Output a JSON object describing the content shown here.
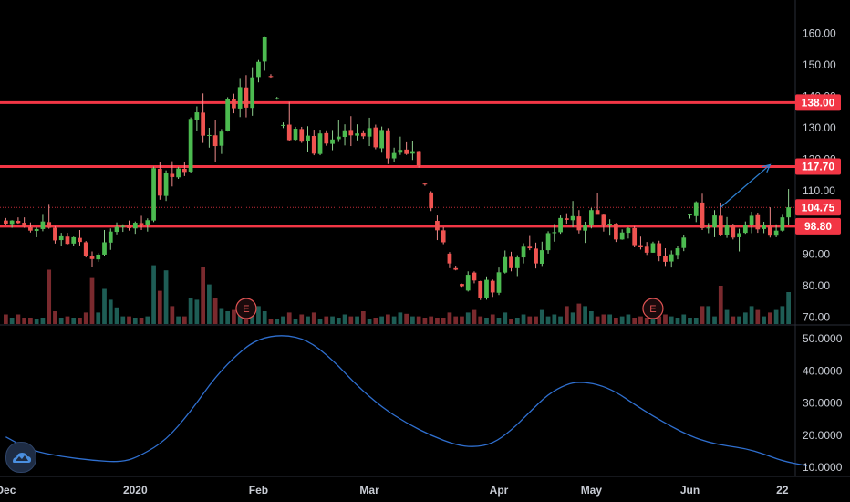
{
  "chart_data": {
    "type": "candlestick",
    "price_axis": {
      "ylim": [
        67.8,
        170.5
      ],
      "ticks": [
        {
          "v": 160,
          "label": "160.00"
        },
        {
          "v": 150,
          "label": "150.00"
        },
        {
          "v": 140,
          "label": "140.00"
        },
        {
          "v": 130,
          "label": "130.00"
        },
        {
          "v": 120,
          "label": "120.00"
        },
        {
          "v": 110,
          "label": "110.00"
        },
        {
          "v": 90,
          "label": "90.00"
        },
        {
          "v": 80,
          "label": "80.00"
        },
        {
          "v": 70,
          "label": "70.00"
        }
      ]
    },
    "indicator_axis": {
      "ylim": [
        7.5,
        54
      ],
      "ticks": [
        {
          "v": 50,
          "label": "50.0000"
        },
        {
          "v": 40,
          "label": "40.0000"
        },
        {
          "v": 30,
          "label": "30.0000"
        },
        {
          "v": 20,
          "label": "20.0000"
        },
        {
          "v": 10,
          "label": "10.0000"
        }
      ]
    },
    "x_ticks": [
      {
        "i": 0,
        "label": "Dec"
      },
      {
        "i": 21,
        "label": "2020"
      },
      {
        "i": 41,
        "label": "Feb"
      },
      {
        "i": 59,
        "label": "Mar"
      },
      {
        "i": 80,
        "label": "Apr"
      },
      {
        "i": 95,
        "label": "May"
      },
      {
        "i": 111,
        "label": "Jun"
      },
      {
        "i": 126,
        "label": "22"
      }
    ],
    "n_slots": 128,
    "horizontal_levels": [
      {
        "value": 138.0,
        "label": "138.00",
        "color": "#f23645"
      },
      {
        "value": 117.7,
        "label": "117.70",
        "color": "#f23645"
      },
      {
        "value": 98.8,
        "label": "98.80",
        "color": "#f23645"
      }
    ],
    "last_price": {
      "value": 104.75,
      "label": "104.75",
      "color": "#f23645"
    },
    "projection_arrow": {
      "from": {
        "i": 116,
        "v": 104.8
      },
      "to": {
        "i": 124,
        "v": 118.3
      },
      "color": "#2d7fd0"
    },
    "earnings_markers": [
      {
        "i": 39,
        "label": "E"
      },
      {
        "i": 105,
        "label": "E"
      }
    ],
    "up_color": "#26a69a",
    "up_body_color": "#4cbb50",
    "down_color": "#ef5350",
    "indicator_color": "#2f6fcf",
    "candles": [
      [
        100.6,
        101.4,
        99.3,
        99.6
      ],
      [
        99.5,
        100.7,
        98.3,
        100.6
      ],
      [
        100.5,
        101.6,
        99.6,
        99.8
      ],
      [
        99.9,
        101.6,
        98.3,
        98.6
      ],
      [
        98.5,
        100.0,
        96.8,
        97.4
      ],
      [
        97.3,
        98.4,
        95.3,
        97.9
      ],
      [
        97.9,
        102.4,
        97.2,
        100.3
      ],
      [
        100.1,
        105.6,
        98.0,
        98.3
      ],
      [
        98.3,
        98.8,
        93.3,
        94.3
      ],
      [
        94.4,
        96.7,
        92.6,
        95.6
      ],
      [
        95.5,
        96.7,
        93.0,
        93.2
      ],
      [
        93.3,
        95.5,
        92.6,
        95.3
      ],
      [
        95.1,
        97.6,
        92.7,
        93.8
      ],
      [
        93.7,
        94.1,
        88.9,
        89.3
      ],
      [
        89.2,
        90.8,
        86.0,
        88.4
      ],
      [
        88.3,
        90.3,
        87.5,
        89.8
      ],
      [
        89.8,
        97.6,
        89.5,
        93.7
      ],
      [
        93.6,
        98.1,
        91.3,
        97.1
      ],
      [
        97.0,
        100.0,
        96.2,
        98.6
      ],
      [
        98.5,
        99.4,
        97.0,
        98.9
      ],
      [
        99.0,
        100.6,
        97.4,
        98.2
      ],
      [
        98.1,
        100.3,
        96.4,
        99.9
      ],
      [
        99.8,
        102.1,
        97.6,
        99.3
      ],
      [
        99.2,
        101.3,
        97.1,
        100.7
      ],
      [
        100.6,
        117.7,
        100.1,
        117.2
      ],
      [
        117.0,
        119.2,
        107.2,
        108.5
      ],
      [
        108.4,
        116.5,
        106.8,
        115.6
      ],
      [
        115.4,
        119.4,
        111.4,
        114.4
      ],
      [
        114.3,
        117.6,
        113.8,
        117.1
      ],
      [
        117.0,
        119.3,
        114.7,
        116.0
      ],
      [
        116.1,
        133.3,
        115.6,
        132.8
      ],
      [
        132.6,
        136.8,
        129.0,
        134.9
      ],
      [
        134.8,
        140.9,
        125.2,
        127.5
      ],
      [
        127.6,
        130.0,
        123.7,
        127.7
      ],
      [
        127.6,
        132.5,
        119.2,
        124.2
      ],
      [
        124.3,
        129.6,
        121.7,
        128.8
      ],
      [
        128.9,
        139.7,
        128.8,
        139.0
      ],
      [
        139.0,
        140.8,
        134.6,
        136.2
      ],
      [
        136.1,
        145.5,
        133.4,
        142.9
      ],
      [
        142.8,
        146.7,
        133.3,
        136.4
      ],
      [
        136.3,
        149.2,
        133.8,
        146.0
      ],
      [
        146.1,
        151.5,
        144.4,
        150.9
      ],
      [
        151.0,
        159.0,
        148.1,
        158.8
      ],
      [
        146.4,
        147.0,
        145.6,
        146.1
      ],
      [
        139.3,
        139.8,
        138.9,
        139.4
      ],
      [
        130.6,
        131.7,
        129.9,
        130.9
      ],
      [
        131.0,
        138.2,
        125.8,
        126.1
      ],
      [
        126.2,
        130.3,
        125.7,
        129.7
      ],
      [
        129.6,
        130.3,
        125.2,
        125.6
      ],
      [
        125.7,
        130.5,
        122.2,
        127.5
      ],
      [
        127.4,
        129.4,
        121.3,
        121.8
      ],
      [
        121.7,
        129.4,
        121.3,
        128.2
      ],
      [
        128.3,
        129.2,
        124.3,
        125.0
      ],
      [
        124.9,
        129.3,
        122.9,
        126.3
      ],
      [
        126.4,
        132.4,
        125.5,
        127.2
      ],
      [
        127.1,
        131.1,
        124.4,
        129.2
      ],
      [
        129.3,
        133.7,
        124.2,
        127.6
      ],
      [
        127.5,
        131.1,
        126.0,
        128.2
      ],
      [
        128.3,
        129.2,
        126.5,
        127.3
      ],
      [
        127.2,
        133.2,
        124.2,
        129.9
      ],
      [
        130.1,
        131.0,
        123.2,
        123.8
      ],
      [
        123.5,
        130.4,
        122.1,
        129.3
      ],
      [
        129.2,
        129.9,
        118.5,
        120.3
      ],
      [
        120.3,
        123.7,
        119.0,
        122.0
      ],
      [
        122.1,
        127.2,
        121.4,
        123.0
      ],
      [
        123.1,
        125.4,
        121.4,
        121.7
      ],
      [
        121.8,
        125.7,
        119.8,
        122.6
      ],
      [
        122.6,
        122.7,
        117.4,
        117.9
      ],
      [
        112.3,
        112.5,
        111.6,
        112.2
      ],
      [
        109.5,
        109.9,
        103.6,
        104.5
      ],
      [
        100.5,
        102.2,
        94.4,
        97.5
      ],
      [
        97.5,
        98.5,
        93.1,
        93.7
      ],
      [
        90.1,
        90.6,
        85.5,
        87.0
      ],
      [
        85.5,
        86.3,
        84.8,
        85.0
      ],
      [
        80.5,
        80.6,
        79.6,
        79.8
      ],
      [
        78.4,
        84.5,
        78.1,
        83.4
      ],
      [
        84.1,
        84.5,
        80.7,
        81.6
      ],
      [
        81.4,
        81.5,
        75.4,
        76.0
      ],
      [
        76.2,
        82.9,
        75.5,
        81.8
      ],
      [
        81.5,
        81.9,
        76.4,
        77.8
      ],
      [
        77.7,
        85.7,
        77.0,
        84.2
      ],
      [
        84.1,
        91.1,
        83.8,
        89.0
      ],
      [
        89.1,
        90.7,
        84.5,
        85.5
      ],
      [
        85.5,
        89.6,
        83.0,
        88.9
      ],
      [
        88.9,
        93.4,
        87.0,
        92.3
      ],
      [
        92.3,
        95.7,
        91.2,
        91.8
      ],
      [
        91.7,
        93.6,
        85.4,
        87.0
      ],
      [
        86.9,
        93.9,
        86.2,
        91.2
      ],
      [
        91.2,
        97.2,
        90.1,
        96.6
      ],
      [
        96.6,
        99.5,
        93.9,
        96.9
      ],
      [
        96.9,
        102.2,
        96.4,
        101.4
      ],
      [
        101.3,
        102.9,
        99.6,
        100.8
      ],
      [
        100.7,
        106.8,
        98.5,
        102.0
      ],
      [
        101.9,
        103.9,
        96.5,
        97.5
      ],
      [
        97.4,
        100.2,
        93.5,
        99.1
      ],
      [
        99.0,
        104.6,
        98.1,
        103.9
      ],
      [
        103.9,
        109.4,
        102.7,
        102.4
      ],
      [
        102.4,
        102.5,
        97.1,
        99.1
      ],
      [
        99.0,
        101.0,
        95.8,
        99.6
      ],
      [
        99.6,
        99.8,
        93.8,
        94.6
      ],
      [
        94.6,
        97.8,
        94.5,
        96.8
      ],
      [
        96.7,
        98.5,
        94.9,
        98.2
      ],
      [
        98.2,
        98.8,
        92.1,
        92.8
      ],
      [
        92.8,
        95.5,
        91.4,
        92.1
      ],
      [
        92.3,
        93.8,
        89.7,
        90.4
      ],
      [
        90.4,
        93.9,
        90.4,
        93.4
      ],
      [
        93.4,
        94.2,
        87.7,
        89.5
      ],
      [
        89.5,
        91.8,
        86.2,
        87.5
      ],
      [
        87.6,
        91.1,
        85.7,
        89.9
      ],
      [
        89.7,
        92.4,
        88.3,
        91.8
      ],
      [
        91.9,
        96.1,
        90.9,
        95.2
      ],
      [
        102.4,
        102.8,
        101.2,
        102.5
      ],
      [
        102.0,
        106.7,
        100.1,
        106.4
      ],
      [
        106.3,
        109.1,
        97.6,
        98.2
      ],
      [
        98.1,
        99.8,
        96.6,
        98.4
      ],
      [
        98.4,
        103.9,
        95.3,
        102.2
      ],
      [
        102.1,
        106.3,
        95.6,
        96.0
      ],
      [
        96.0,
        101.7,
        95.1,
        99.2
      ],
      [
        99.2,
        99.6,
        94.6,
        95.2
      ],
      [
        95.3,
        98.0,
        90.8,
        96.6
      ],
      [
        96.7,
        100.3,
        96.4,
        99.2
      ],
      [
        99.2,
        103.4,
        96.6,
        102.1
      ],
      [
        102.3,
        103.1,
        96.7,
        97.8
      ],
      [
        97.9,
        100.2,
        96.6,
        99.1
      ],
      [
        99.0,
        104.8,
        95.2,
        95.8
      ],
      [
        95.8,
        99.4,
        95.3,
        97.4
      ],
      [
        97.4,
        102.4,
        97.1,
        101.6
      ],
      [
        101.6,
        110.6,
        99.3,
        104.8
      ]
    ],
    "volumes": [
      0.15,
      0.1,
      0.15,
      0.1,
      0.1,
      0.08,
      0.1,
      0.85,
      0.2,
      0.1,
      0.12,
      0.1,
      0.1,
      0.18,
      0.72,
      0.18,
      0.55,
      0.38,
      0.26,
      0.12,
      0.12,
      0.1,
      0.1,
      0.12,
      0.92,
      0.52,
      0.84,
      0.28,
      0.12,
      0.12,
      0.4,
      0.38,
      0.9,
      0.62,
      0.4,
      0.25,
      0.2,
      0.22,
      0.25,
      0.12,
      0.22,
      0.28,
      0.2,
      0.08,
      0.08,
      0.12,
      0.18,
      0.08,
      0.15,
      0.12,
      0.18,
      0.08,
      0.12,
      0.12,
      0.1,
      0.15,
      0.12,
      0.12,
      0.2,
      0.08,
      0.1,
      0.12,
      0.15,
      0.12,
      0.18,
      0.16,
      0.12,
      0.12,
      0.1,
      0.12,
      0.1,
      0.1,
      0.18,
      0.12,
      0.12,
      0.18,
      0.22,
      0.12,
      0.1,
      0.15,
      0.1,
      0.18,
      0.08,
      0.1,
      0.15,
      0.12,
      0.12,
      0.22,
      0.12,
      0.15,
      0.12,
      0.28,
      0.18,
      0.32,
      0.28,
      0.2,
      0.12,
      0.15,
      0.15,
      0.1,
      0.12,
      0.15,
      0.1,
      0.12,
      0.1,
      0.1,
      0.12,
      0.15,
      0.12,
      0.1,
      0.15,
      0.1,
      0.1,
      0.28,
      0.28,
      0.12,
      0.6,
      0.22,
      0.12,
      0.12,
      0.18,
      0.28,
      0.22,
      0.12,
      0.18,
      0.22,
      0.28,
      0.5
    ],
    "indicator_series": [
      [
        0,
        19.5
      ],
      [
        4,
        15.3
      ],
      [
        9,
        13.4
      ],
      [
        14,
        12.2
      ],
      [
        19,
        11.6
      ],
      [
        22,
        13.8
      ],
      [
        26,
        18.5
      ],
      [
        30,
        27.4
      ],
      [
        34,
        38.2
      ],
      [
        38,
        46.0
      ],
      [
        41,
        50.0
      ],
      [
        45,
        51.3
      ],
      [
        49,
        49.6
      ],
      [
        53,
        43.5
      ],
      [
        57,
        35.4
      ],
      [
        61,
        28.7
      ],
      [
        65,
        23.8
      ],
      [
        69,
        19.9
      ],
      [
        73,
        17.0
      ],
      [
        76,
        16.3
      ],
      [
        79,
        17.4
      ],
      [
        82,
        21.5
      ],
      [
        85,
        27.2
      ],
      [
        88,
        32.8
      ],
      [
        91,
        35.9
      ],
      [
        93,
        36.6
      ],
      [
        96,
        35.9
      ],
      [
        99,
        33.5
      ],
      [
        102,
        29.6
      ],
      [
        105,
        26.0
      ],
      [
        108,
        22.7
      ],
      [
        111,
        19.8
      ],
      [
        114,
        17.8
      ],
      [
        117,
        16.7
      ],
      [
        120,
        15.9
      ],
      [
        123,
        14.2
      ],
      [
        126,
        12.0
      ],
      [
        130,
        10.5
      ]
    ]
  }
}
